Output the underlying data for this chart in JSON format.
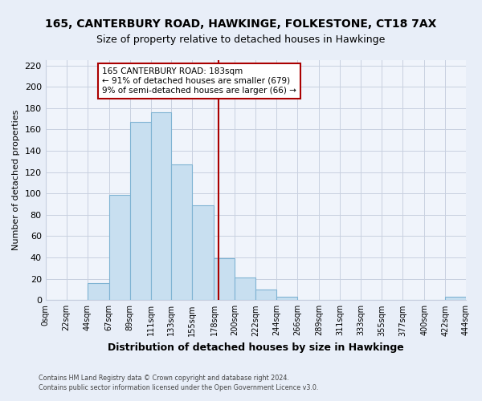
{
  "title": "165, CANTERBURY ROAD, HAWKINGE, FOLKESTONE, CT18 7AX",
  "subtitle": "Size of property relative to detached houses in Hawkinge",
  "xlabel": "Distribution of detached houses by size in Hawkinge",
  "ylabel": "Number of detached properties",
  "bar_edges": [
    0,
    22,
    44,
    67,
    89,
    111,
    133,
    155,
    178,
    200,
    222,
    244,
    266,
    289,
    311,
    333,
    355,
    377,
    400,
    422,
    444
  ],
  "bar_heights": [
    0,
    0,
    16,
    99,
    167,
    176,
    127,
    89,
    39,
    21,
    10,
    3,
    0,
    0,
    0,
    0,
    0,
    0,
    0,
    3
  ],
  "bar_color": "#c8dff0",
  "bar_edgecolor": "#7fb3d3",
  "property_size": 183,
  "vline_color": "#aa0000",
  "annotation_text": "165 CANTERBURY ROAD: 183sqm\n← 91% of detached houses are smaller (679)\n9% of semi-detached houses are larger (66) →",
  "annotation_box_edgecolor": "#aa0000",
  "ylim": [
    0,
    225
  ],
  "yticks": [
    0,
    20,
    40,
    60,
    80,
    100,
    120,
    140,
    160,
    180,
    200,
    220
  ],
  "tick_labels": [
    "0sqm",
    "22sqm",
    "44sqm",
    "67sqm",
    "89sqm",
    "111sqm",
    "133sqm",
    "155sqm",
    "178sqm",
    "200sqm",
    "222sqm",
    "244sqm",
    "266sqm",
    "289sqm",
    "311sqm",
    "333sqm",
    "355sqm",
    "377sqm",
    "400sqm",
    "422sqm",
    "444sqm"
  ],
  "footer1": "Contains HM Land Registry data © Crown copyright and database right 2024.",
  "footer2": "Contains public sector information licensed under the Open Government Licence v3.0.",
  "background_color": "#e8eef8",
  "plot_bg_color": "#f0f4fb",
  "grid_color": "#c8d0e0",
  "title_fontsize": 10,
  "subtitle_fontsize": 9,
  "xlabel_fontsize": 9,
  "ylabel_fontsize": 8,
  "ytick_fontsize": 8,
  "xtick_fontsize": 7
}
